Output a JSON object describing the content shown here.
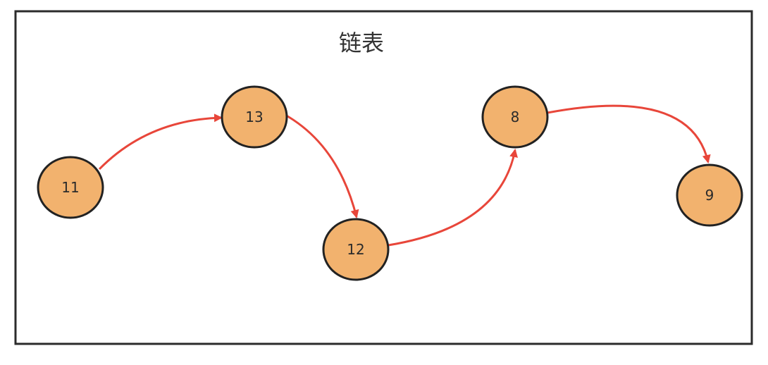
{
  "title": "链表",
  "colors": {
    "frame": "#2b2b2b",
    "node_fill": "#f2b26e",
    "node_stroke": "#222222",
    "arrow": "#e8463a",
    "text": "#2b2b2b"
  },
  "nodes": [
    {
      "id": "n11",
      "label": "11"
    },
    {
      "id": "n13",
      "label": "13"
    },
    {
      "id": "n12",
      "label": "12"
    },
    {
      "id": "n8",
      "label": "8"
    },
    {
      "id": "n9",
      "label": "9"
    }
  ],
  "links": [
    {
      "from": "n11",
      "to": "n13"
    },
    {
      "from": "n13",
      "to": "n12"
    },
    {
      "from": "n12",
      "to": "n8"
    },
    {
      "from": "n8",
      "to": "n9"
    }
  ]
}
